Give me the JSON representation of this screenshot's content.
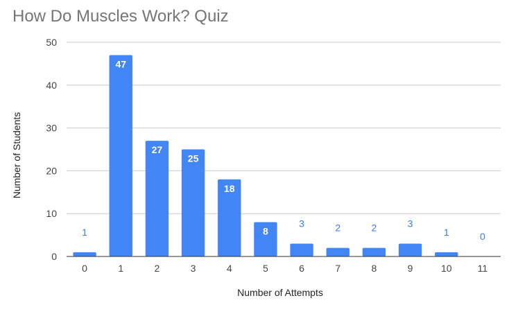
{
  "chart_data": {
    "type": "bar",
    "title": "How Do Muscles Work? Quiz",
    "xlabel": "Number of Attempts",
    "ylabel": "Number of Students",
    "categories": [
      "0",
      "1",
      "2",
      "3",
      "4",
      "5",
      "6",
      "7",
      "8",
      "9",
      "10",
      "11"
    ],
    "values": [
      1,
      47,
      27,
      25,
      18,
      8,
      3,
      2,
      2,
      3,
      1,
      0
    ],
    "data_labels": [
      "1",
      "47",
      "27",
      "25",
      "18",
      "8",
      "3",
      "2",
      "2",
      "3",
      "1",
      "0"
    ],
    "ylim": [
      0,
      50
    ],
    "yticks": [
      "0",
      "10",
      "20",
      "30",
      "40",
      "50"
    ],
    "grid": true,
    "legend": "none",
    "bar_color": "#4285f4",
    "label_outside_color": "#3d7ae6",
    "grid_color": "#cccccc"
  }
}
